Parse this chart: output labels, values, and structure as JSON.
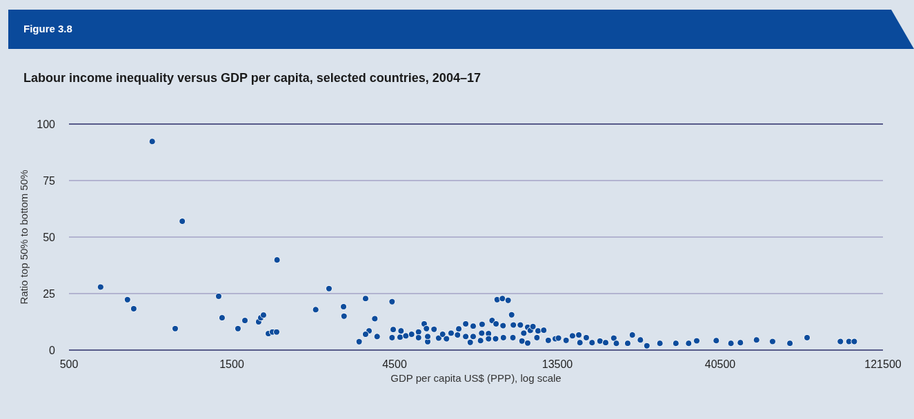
{
  "chart_data": {
    "type": "scatter",
    "title": "Figure 3.8",
    "subtitle": "Labour income inequality versus GDP per capita, selected countries, 2004–17",
    "xlabel": "GDP per capita US$ (PPP), log scale",
    "ylabel": "Ratio top 50% to bottom 50%",
    "log": "x",
    "xlim": [
      500,
      121500
    ],
    "xticks": [
      500,
      1500,
      4500,
      13500,
      40500,
      121500
    ],
    "ylim": [
      0,
      100
    ],
    "yticks": [
      0,
      25,
      50,
      75,
      100
    ],
    "grid": "y",
    "marker": "circle",
    "x": [
      619,
      742,
      774,
      877,
      1024,
      1074,
      1373,
      1405,
      1564,
      1639,
      1798,
      1824,
      1858,
      1920,
      1974,
      2030,
      2036,
      2643,
      2891,
      3189,
      3200,
      3543,
      3700,
      4424,
      3937,
      3788,
      3700,
      4000,
      4424,
      4459,
      4670,
      4700,
      4855,
      5048,
      5290,
      5290,
      5496,
      5580,
      5627,
      5627,
      5873,
      6060,
      6224,
      6387,
      6590,
      6883,
      6940,
      7272,
      7272,
      7500,
      7650,
      7650,
      8040,
      8100,
      8125,
      8485,
      8485,
      8690,
      8925,
      8900,
      8990,
      9315,
      9685,
      9355,
      9380,
      9915,
      10030,
      10000,
      10515,
      10760,
      10630,
      11050,
      11050,
      11250,
      11450,
      11760,
      11850,
      12315,
      12700,
      13315,
      13600,
      14320,
      14950,
      15600,
      15720,
      16410,
      17060,
      18000,
      18700,
      19760,
      20100,
      21700,
      23640,
      22390,
      24700,
      26970,
      30040,
      32740,
      34570,
      39440,
      43560,
      46420,
      51770,
      57680,
      64840,
      72810,
      91150,
      96630,
      100100
    ],
    "series": [
      {
        "color": "#0d4c9c",
        "values": [
          27.9,
          22.3,
          18.3,
          92.3,
          9.5,
          57.0,
          23.8,
          14.3,
          9.5,
          13.1,
          12.5,
          14.3,
          15.5,
          7.3,
          8.0,
          8.0,
          39.9,
          17.9,
          27.2,
          19.2,
          15.0,
          3.7,
          22.8,
          21.4,
          13.9,
          8.5,
          7.0,
          6.0,
          5.5,
          9.1,
          5.7,
          8.5,
          6.3,
          7.0,
          8.0,
          5.5,
          11.6,
          9.5,
          3.7,
          6.0,
          9.2,
          5.3,
          7.0,
          5.0,
          7.5,
          6.7,
          9.4,
          11.6,
          6.0,
          3.4,
          10.6,
          6.0,
          4.2,
          7.5,
          11.4,
          7.3,
          5.0,
          13.1,
          11.6,
          5.0,
          22.3,
          22.8,
          22.0,
          10.8,
          5.5,
          15.6,
          11.1,
          5.5,
          11.1,
          7.5,
          4.0,
          3.1,
          10.1,
          8.7,
          10.4,
          5.5,
          8.5,
          8.8,
          4.3,
          5.0,
          5.3,
          4.3,
          6.3,
          6.7,
          3.3,
          5.5,
          3.3,
          4.0,
          3.3,
          5.3,
          3.0,
          3.0,
          4.5,
          6.7,
          1.9,
          3.0,
          3.0,
          3.0,
          4.1,
          4.2,
          3.0,
          3.3,
          4.5,
          3.8,
          3.0,
          5.5,
          3.8,
          3.8,
          3.8
        ]
      }
    ]
  }
}
